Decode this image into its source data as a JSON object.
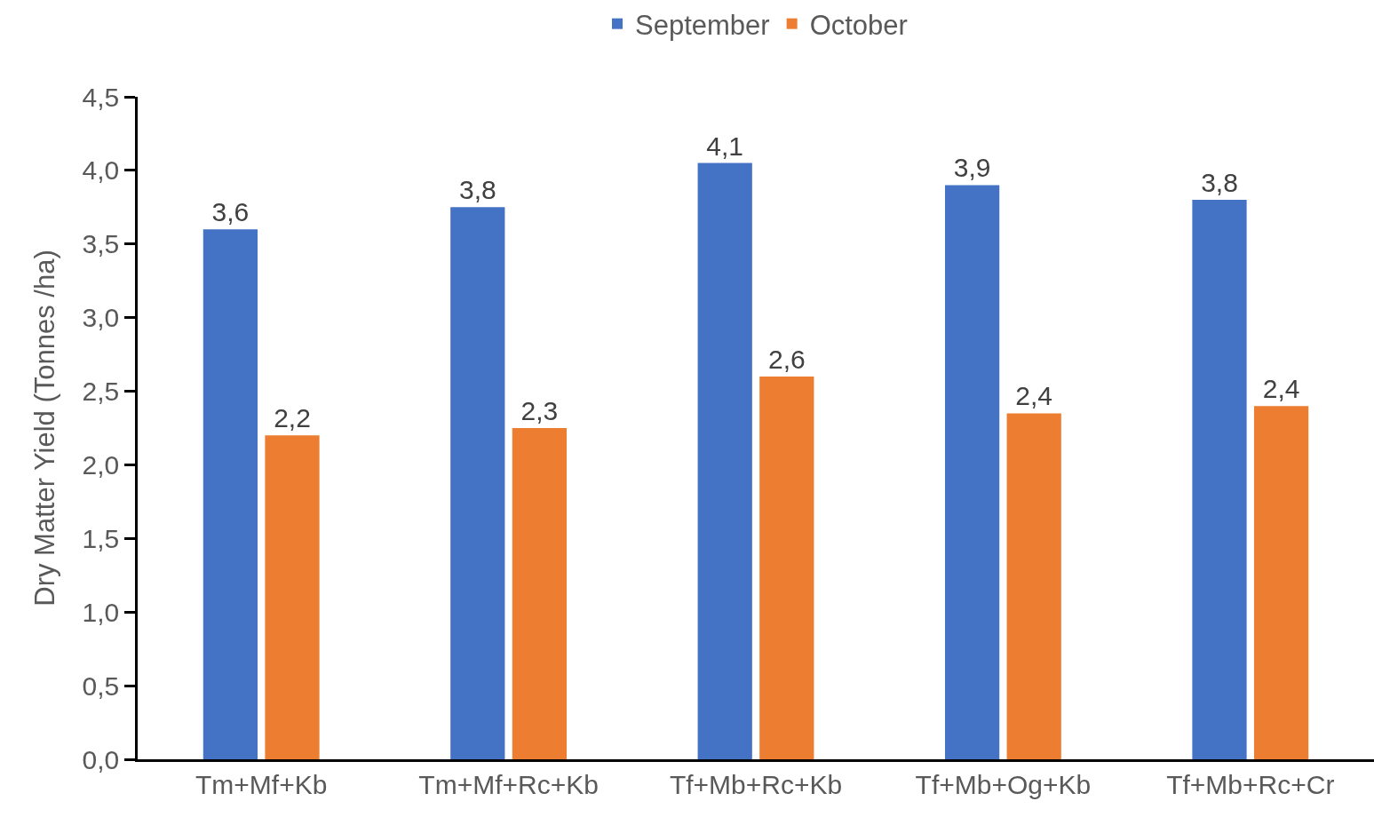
{
  "chart_data": {
    "type": "bar",
    "ylabel": "Dry Matter Yield (Tonnes /ha)",
    "categories": [
      "Tm+Mf+Kb",
      "Tm+Mf+Rc+Kb",
      "Tf+Mb+Rc+Kb",
      "Tf+Mb+Og+Kb",
      "Tf+Mb+Rc+Cr"
    ],
    "series": [
      {
        "name": "September",
        "color": "#4472c4",
        "values": [
          3.6,
          3.75,
          4.05,
          3.9,
          3.8
        ],
        "value_labels": [
          "3,6",
          "3,8",
          "4,1",
          "3,9",
          "3,8"
        ]
      },
      {
        "name": "October",
        "color": "#ed7d31",
        "values": [
          2.2,
          2.25,
          2.6,
          2.35,
          2.4
        ],
        "value_labels": [
          "2,2",
          "2,3",
          "2,6",
          "2,4",
          "2,4"
        ]
      }
    ],
    "ylim": [
      0,
      4.5
    ],
    "yticks": [
      {
        "value": 0,
        "label": "0,0"
      },
      {
        "value": 0.5,
        "label": "0,5"
      },
      {
        "value": 1,
        "label": "1,0"
      },
      {
        "value": 1.5,
        "label": "1,5"
      },
      {
        "value": 2,
        "label": "2,0"
      },
      {
        "value": 2.5,
        "label": "2,5"
      },
      {
        "value": 3,
        "label": "3,0"
      },
      {
        "value": 3.5,
        "label": "3,5"
      },
      {
        "value": 4,
        "label": "4,0"
      },
      {
        "value": 4.5,
        "label": "4,5"
      }
    ],
    "legend": "top"
  }
}
